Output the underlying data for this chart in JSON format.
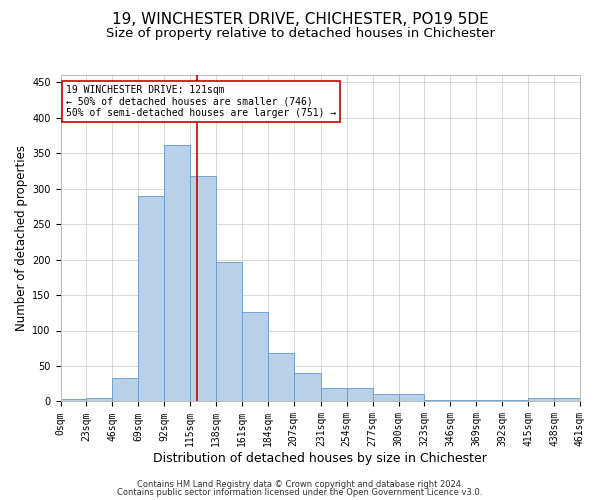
{
  "title": "19, WINCHESTER DRIVE, CHICHESTER, PO19 5DE",
  "subtitle": "Size of property relative to detached houses in Chichester",
  "xlabel": "Distribution of detached houses by size in Chichester",
  "ylabel": "Number of detached properties",
  "footnote1": "Contains HM Land Registry data © Crown copyright and database right 2024.",
  "footnote2": "Contains public sector information licensed under the Open Government Licence v3.0.",
  "bin_edges": [
    0,
    23,
    46,
    69,
    92,
    115,
    138,
    161,
    184,
    207,
    231,
    254,
    277,
    300,
    323,
    346,
    369,
    392,
    415,
    438,
    461
  ],
  "bar_heights": [
    3,
    5,
    33,
    290,
    362,
    317,
    197,
    126,
    69,
    40,
    19,
    19,
    10,
    10,
    2,
    2,
    2,
    2,
    5,
    5
  ],
  "bar_color": "#b8d0e8",
  "bar_edge_color": "#6699cc",
  "property_size": 121,
  "red_line_color": "#cc0000",
  "annotation_text": "19 WINCHESTER DRIVE: 121sqm\n← 50% of detached houses are smaller (746)\n50% of semi-detached houses are larger (751) →",
  "annotation_box_color": "#ffffff",
  "annotation_box_edge_color": "#cc0000",
  "ylim": [
    0,
    460
  ],
  "yticks": [
    0,
    50,
    100,
    150,
    200,
    250,
    300,
    350,
    400,
    450
  ],
  "background_color": "#ffffff",
  "grid_color": "#cccccc",
  "title_fontsize": 11,
  "subtitle_fontsize": 9.5,
  "xlabel_fontsize": 9,
  "ylabel_fontsize": 8.5,
  "tick_fontsize": 7,
  "annotation_fontsize": 7,
  "footnote_fontsize": 6
}
